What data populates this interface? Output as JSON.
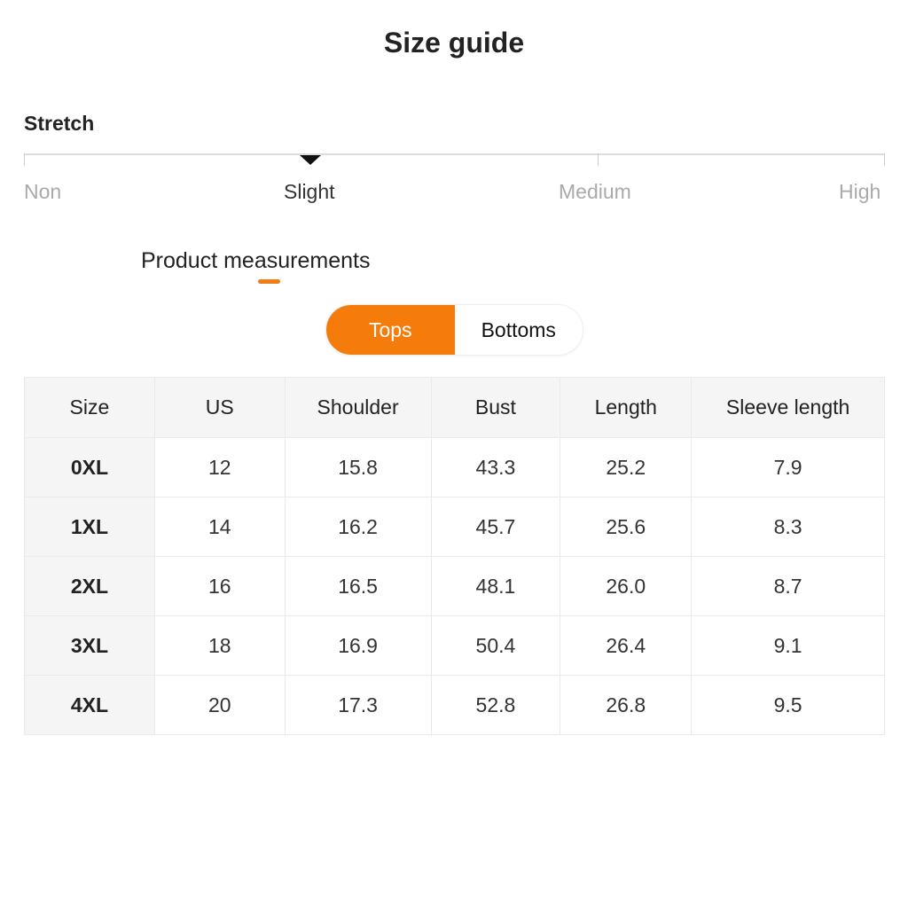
{
  "title": "Size guide",
  "stretch": {
    "label": "Stretch",
    "levels": [
      "Non",
      "Slight",
      "Medium",
      "High"
    ],
    "selected": "Slight"
  },
  "section": {
    "label": "Product measurements"
  },
  "toggle": {
    "options": [
      "Tops",
      "Bottoms"
    ],
    "selected": "Tops",
    "accent": "#f57c0a"
  },
  "table": {
    "headers": [
      "Size",
      "US",
      "Shoulder",
      "Bust",
      "Length",
      "Sleeve length"
    ],
    "rows": [
      [
        "0XL",
        "12",
        "15.8",
        "43.3",
        "25.2",
        "7.9"
      ],
      [
        "1XL",
        "14",
        "16.2",
        "45.7",
        "25.6",
        "8.3"
      ],
      [
        "2XL",
        "16",
        "16.5",
        "48.1",
        "26.0",
        "8.7"
      ],
      [
        "3XL",
        "18",
        "16.9",
        "50.4",
        "26.4",
        "9.1"
      ],
      [
        "4XL",
        "20",
        "17.3",
        "52.8",
        "26.8",
        "9.5"
      ]
    ]
  }
}
